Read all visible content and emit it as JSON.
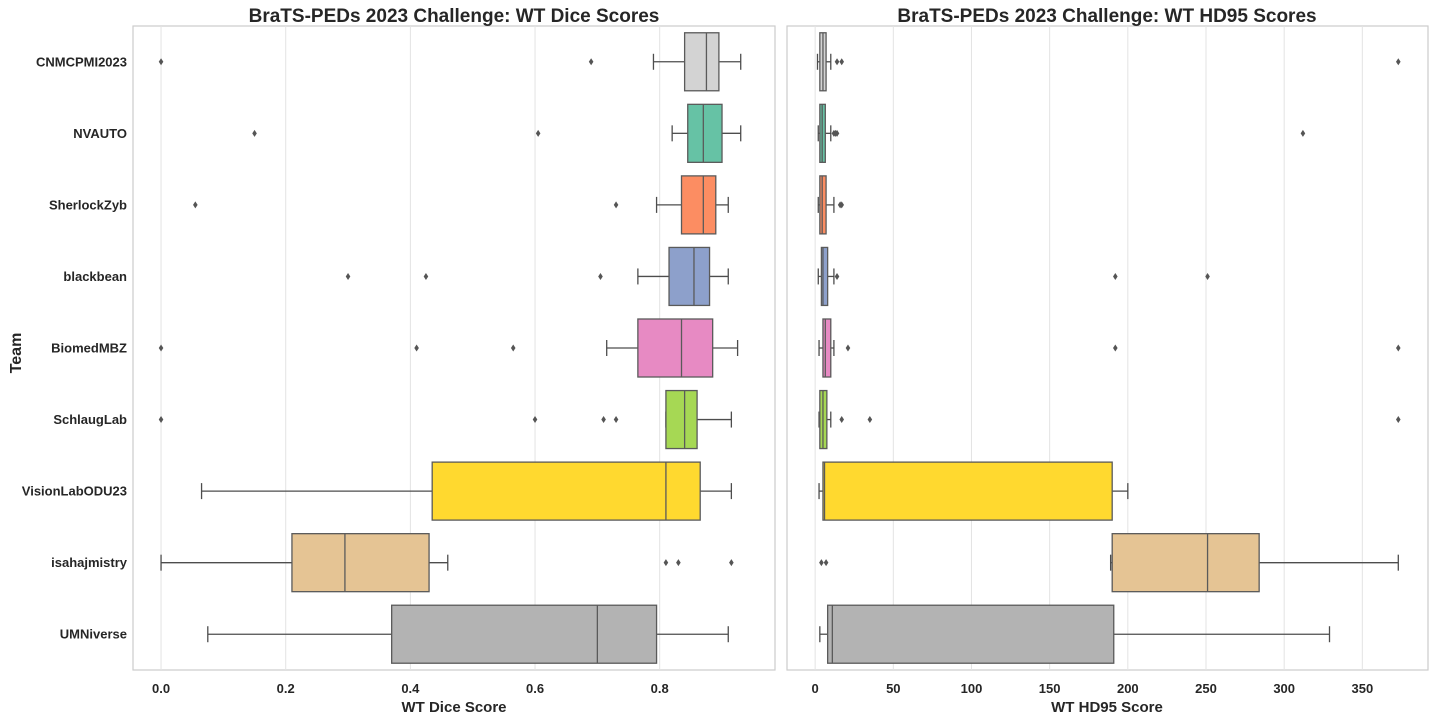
{
  "figure": {
    "ylabel": "Team",
    "teams": [
      "CNMCPMI2023",
      "NVAUTO",
      "SherlockZyb",
      "blackbean",
      "BiomedMBZ",
      "SchlaugLab",
      "VisionLabODU23",
      "isahajmistry",
      "UMNiverse"
    ],
    "colors": [
      "#d3d3d3",
      "#66c2a5",
      "#fc8d62",
      "#8da0cb",
      "#e78ac3",
      "#a6d854",
      "#ffd92f",
      "#e5c494",
      "#b3b3b3"
    ]
  },
  "chart_data": [
    {
      "type": "box",
      "title": "BraTS-PEDs 2023 Challenge: WT Dice Scores",
      "xlabel": "WT Dice Score",
      "ylabel": "Team",
      "xlim": [
        -0.045,
        0.985
      ],
      "xticks": [
        0.0,
        0.2,
        0.4,
        0.6,
        0.8
      ],
      "xtick_labels": [
        "0.0",
        "0.2",
        "0.4",
        "0.6",
        "0.8"
      ],
      "grid": "vertical",
      "series": [
        {
          "team": "CNMCPMI2023",
          "whislo": 0.79,
          "q1": 0.84,
          "median": 0.875,
          "q3": 0.895,
          "whishi": 0.93,
          "fliers": [
            0.0,
            0.69
          ]
        },
        {
          "team": "NVAUTO",
          "whislo": 0.82,
          "q1": 0.845,
          "median": 0.87,
          "q3": 0.9,
          "whishi": 0.93,
          "fliers": [
            0.15,
            0.605
          ]
        },
        {
          "team": "SherlockZyb",
          "whislo": 0.795,
          "q1": 0.835,
          "median": 0.87,
          "q3": 0.89,
          "whishi": 0.91,
          "fliers": [
            0.055,
            0.73
          ]
        },
        {
          "team": "blackbean",
          "whislo": 0.765,
          "q1": 0.815,
          "median": 0.855,
          "q3": 0.88,
          "whishi": 0.91,
          "fliers": [
            0.3,
            0.425,
            0.705
          ]
        },
        {
          "team": "BiomedMBZ",
          "whislo": 0.715,
          "q1": 0.765,
          "median": 0.835,
          "q3": 0.885,
          "whishi": 0.925,
          "fliers": [
            0.0,
            0.41,
            0.565
          ]
        },
        {
          "team": "SchlaugLab",
          "whislo": 0.81,
          "q1": 0.81,
          "median": 0.84,
          "q3": 0.86,
          "whishi": 0.915,
          "fliers": [
            0.0,
            0.6,
            0.71,
            0.73
          ]
        },
        {
          "team": "VisionLabODU23",
          "whislo": 0.065,
          "q1": 0.435,
          "median": 0.81,
          "q3": 0.865,
          "whishi": 0.915,
          "fliers": []
        },
        {
          "team": "isahajmistry",
          "whislo": 0.0,
          "q1": 0.21,
          "median": 0.295,
          "q3": 0.43,
          "whishi": 0.46,
          "fliers": [
            0.81,
            0.83,
            0.915
          ]
        },
        {
          "team": "UMNiverse",
          "whislo": 0.075,
          "q1": 0.37,
          "median": 0.7,
          "q3": 0.795,
          "whishi": 0.91,
          "fliers": []
        }
      ]
    },
    {
      "type": "box",
      "title": "BraTS-PEDs 2023 Challenge: WT HD95 Scores",
      "xlabel": "WT HD95 Score",
      "ylabel": "Team",
      "xlim": [
        -18,
        392
      ],
      "xticks": [
        0,
        50,
        100,
        150,
        200,
        250,
        300,
        350
      ],
      "xtick_labels": [
        "0",
        "50",
        "100",
        "150",
        "200",
        "250",
        "300",
        "350"
      ],
      "grid": "vertical",
      "series": [
        {
          "team": "CNMCPMI2023",
          "whislo": 1.5,
          "q1": 3,
          "median": 5,
          "q3": 7,
          "whishi": 10,
          "fliers": [
            14,
            17,
            373
          ]
        },
        {
          "team": "NVAUTO",
          "whislo": 2,
          "q1": 3,
          "median": 4.5,
          "q3": 6.5,
          "whishi": 10,
          "fliers": [
            12,
            13,
            14,
            312
          ]
        },
        {
          "team": "SherlockZyb",
          "whislo": 2,
          "q1": 3,
          "median": 4.5,
          "q3": 7,
          "whishi": 12,
          "fliers": [
            16,
            17
          ]
        },
        {
          "team": "blackbean",
          "whislo": 2,
          "q1": 4,
          "median": 5,
          "q3": 8,
          "whishi": 12,
          "fliers": [
            14,
            192,
            251
          ]
        },
        {
          "team": "BiomedMBZ",
          "whislo": 2.5,
          "q1": 5,
          "median": 6.5,
          "q3": 10,
          "whishi": 12,
          "fliers": [
            21,
            192,
            373
          ]
        },
        {
          "team": "SchlaugLab",
          "whislo": 2.5,
          "q1": 3,
          "median": 5,
          "q3": 7.5,
          "whishi": 10,
          "fliers": [
            17,
            35,
            373
          ]
        },
        {
          "team": "VisionLabODU23",
          "whislo": 2.5,
          "q1": 5,
          "median": 6,
          "q3": 190,
          "whishi": 200,
          "fliers": []
        },
        {
          "team": "isahajmistry",
          "whislo": 189,
          "q1": 190,
          "median": 251,
          "q3": 284,
          "whishi": 373,
          "fliers": [
            4,
            7
          ]
        },
        {
          "team": "UMNiverse",
          "whislo": 3,
          "q1": 8,
          "median": 11,
          "q3": 191,
          "whishi": 329,
          "fliers": []
        }
      ]
    }
  ]
}
